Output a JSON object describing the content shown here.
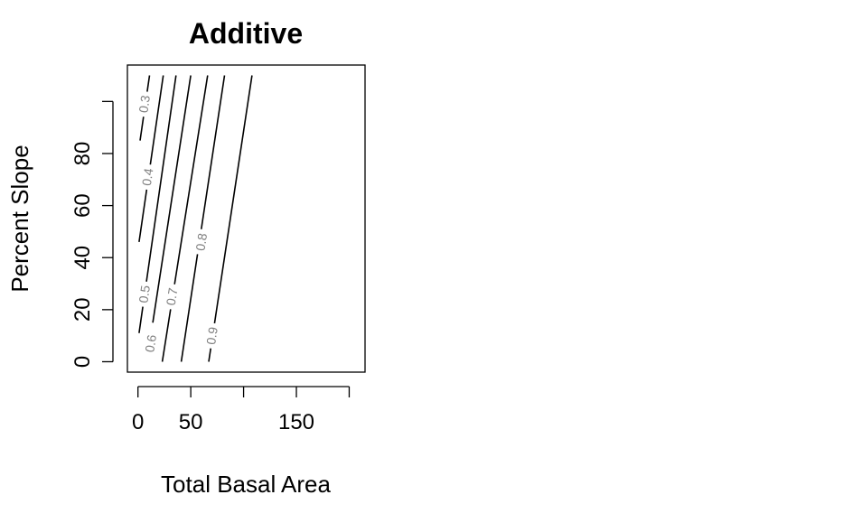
{
  "chart_data": {
    "type": "contour",
    "title": "Additive",
    "xlabel": "Total Basal Area",
    "ylabel": "Percent Slope",
    "xlim": [
      -10,
      215
    ],
    "ylim": [
      -4,
      114
    ],
    "x_ticks": [
      0,
      50,
      100,
      150,
      200
    ],
    "x_tick_labels": [
      "0",
      "50",
      "",
      "150",
      ""
    ],
    "y_ticks": [
      0,
      20,
      40,
      60,
      80,
      100
    ],
    "y_tick_labels": [
      "0",
      "20",
      "40",
      "60",
      "80",
      ""
    ],
    "grid": false,
    "contours": [
      {
        "level": "0.3",
        "points": [
          [
            2,
            85
          ],
          [
            11,
            110
          ]
        ]
      },
      {
        "level": "0.4",
        "points": [
          [
            1,
            46
          ],
          [
            24,
            110
          ]
        ]
      },
      {
        "level": "0.5",
        "points": [
          [
            1,
            11
          ],
          [
            36,
            110
          ]
        ]
      },
      {
        "level": "0.6",
        "points": [
          [
            14,
            15
          ],
          [
            50,
            110
          ]
        ]
      },
      {
        "level": "0.7",
        "points": [
          [
            23,
            0
          ],
          [
            66,
            110
          ]
        ]
      },
      {
        "level": "0.8",
        "points": [
          [
            41,
            0
          ],
          [
            82,
            110
          ]
        ]
      },
      {
        "level": "0.9",
        "points": [
          [
            67,
            0
          ],
          [
            108,
            110
          ]
        ]
      }
    ],
    "contour_labels": [
      {
        "text": "0.3",
        "x": 6,
        "y": 99
      },
      {
        "text": "0.4",
        "x": 9,
        "y": 71
      },
      {
        "text": "0.5",
        "x": 6,
        "y": 26
      },
      {
        "text": "0.6",
        "x": 12,
        "y": 7
      },
      {
        "text": "0.7",
        "x": 32,
        "y": 25
      },
      {
        "text": "0.8",
        "x": 60,
        "y": 46
      },
      {
        "text": "0.9",
        "x": 70,
        "y": 10
      }
    ]
  }
}
